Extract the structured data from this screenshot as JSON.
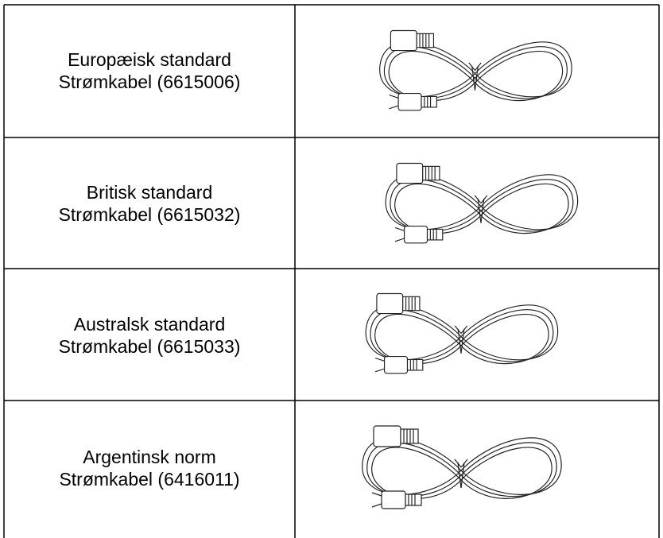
{
  "table": {
    "rows": [
      {
        "lines": [
          "Europæisk standard",
          "Strømkabel (6615006)"
        ]
      },
      {
        "lines": [
          "Britisk standard",
          "Strømkabel (6615032)"
        ]
      },
      {
        "lines": [
          "Australsk standard",
          "Strømkabel (6615033)"
        ]
      },
      {
        "lines": [
          "Argentinsk norm",
          "Strømkabel (6416011)"
        ]
      }
    ]
  }
}
